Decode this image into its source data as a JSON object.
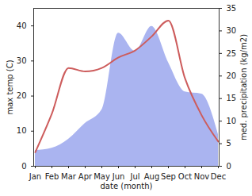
{
  "chart_data": {
    "type": "line",
    "x_label": "date (month)",
    "categories": [
      "Jan",
      "Feb",
      "Mar",
      "Apr",
      "May",
      "Jun",
      "Jul",
      "Aug",
      "Sep",
      "Oct",
      "Nov",
      "Dec"
    ],
    "ylim": [
      0,
      45
    ],
    "yticks": [
      0,
      10,
      20,
      30,
      40
    ],
    "y2lim": [
      0,
      35
    ],
    "y2ticks": [
      0,
      5,
      10,
      15,
      20,
      25,
      30,
      35
    ],
    "series": [
      {
        "name": "med. precipitation (kg/m2)",
        "type": "area",
        "axis": "y2",
        "color": "#aab4f0",
        "values": [
          3.5,
          4,
          6,
          9.5,
          12.5,
          29.5,
          25.5,
          31,
          23,
          16.5,
          16,
          7
        ]
      },
      {
        "name": "max temp (C)",
        "type": "line",
        "axis": "y",
        "color": "#cd5c5c",
        "values": [
          4,
          15,
          28,
          27,
          28,
          31,
          33,
          37,
          41.5,
          25,
          14.5,
          7
        ]
      }
    ]
  }
}
